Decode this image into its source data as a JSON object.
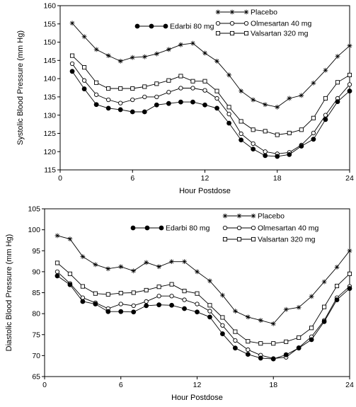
{
  "chart_data": [
    {
      "type": "line",
      "xlabel": "Hour Postdose",
      "ylabel": "Systolic Blood Pressure (mm Hg)",
      "xlim": [
        0,
        24
      ],
      "ylim": [
        115,
        160
      ],
      "xticks": [
        0,
        6,
        12,
        18,
        24
      ],
      "yticks": [
        115,
        120,
        125,
        130,
        135,
        140,
        145,
        150,
        155,
        160
      ],
      "grid": false,
      "x": [
        1,
        2,
        3,
        4,
        5,
        6,
        7,
        8,
        9,
        10,
        11,
        12,
        13,
        14,
        15,
        16,
        17,
        18,
        19,
        20,
        21,
        22,
        23,
        24
      ],
      "series": [
        {
          "name": "Placebo",
          "marker": "star",
          "values": [
            155.2,
            151.5,
            148.0,
            146.3,
            144.8,
            145.8,
            146.0,
            146.8,
            148.0,
            149.3,
            149.7,
            147.0,
            144.8,
            141.0,
            136.6,
            134.2,
            132.9,
            132.2,
            134.6,
            135.4,
            138.8,
            142.3,
            146.1,
            149.0
          ]
        },
        {
          "name": "Olmesartan 40 mg",
          "marker": "circle-open",
          "values": [
            144.1,
            139.5,
            135.6,
            134.2,
            133.3,
            134.2,
            135.0,
            135.0,
            136.3,
            137.4,
            137.4,
            136.8,
            134.6,
            130.3,
            124.9,
            122.2,
            120.0,
            119.4,
            119.8,
            121.8,
            125.1,
            130.0,
            134.6,
            138.4
          ]
        },
        {
          "name": "Valsartan 320 mg",
          "marker": "square-open",
          "values": [
            146.3,
            143.1,
            138.9,
            137.3,
            137.3,
            137.3,
            137.8,
            138.6,
            139.5,
            140.7,
            139.3,
            139.3,
            136.6,
            132.2,
            128.3,
            126.0,
            125.6,
            124.6,
            125.1,
            126.0,
            129.2,
            134.6,
            139.0,
            141.0
          ]
        },
        {
          "name": "Edarbi 80 mg",
          "marker": "circle-filled",
          "values": [
            142.0,
            137.2,
            132.9,
            131.9,
            131.5,
            130.9,
            130.9,
            132.8,
            133.2,
            133.6,
            133.6,
            132.8,
            131.9,
            127.8,
            123.2,
            120.7,
            118.9,
            118.7,
            119.2,
            121.5,
            123.4,
            128.8,
            133.7,
            136.6
          ]
        }
      ]
    },
    {
      "type": "line",
      "xlabel": "Hour Postdose",
      "ylabel": "Diastolic Blood Pressure (mm Hg)",
      "xlim": [
        0,
        24
      ],
      "ylim": [
        65,
        105
      ],
      "xticks": [
        0,
        6,
        12,
        18,
        24
      ],
      "yticks": [
        65,
        70,
        75,
        80,
        85,
        90,
        95,
        100,
        105
      ],
      "grid": false,
      "x": [
        1,
        2,
        3,
        4,
        5,
        6,
        7,
        8,
        9,
        10,
        11,
        12,
        13,
        14,
        15,
        16,
        17,
        18,
        19,
        20,
        21,
        22,
        23,
        24
      ],
      "series": [
        {
          "name": "Placebo",
          "marker": "star",
          "values": [
            98.6,
            97.8,
            93.6,
            91.7,
            90.7,
            91.2,
            90.2,
            92.2,
            91.2,
            92.4,
            92.4,
            90.0,
            87.8,
            84.4,
            80.6,
            79.2,
            78.4,
            77.6,
            81.0,
            81.5,
            84.1,
            87.6,
            91.1,
            95.0
          ]
        },
        {
          "name": "Olmesartan 40 mg",
          "marker": "circle-open",
          "values": [
            90.0,
            87.2,
            83.8,
            82.6,
            81.2,
            82.3,
            81.9,
            82.9,
            84.2,
            84.2,
            83.3,
            82.3,
            80.6,
            77.2,
            73.6,
            71.4,
            70.1,
            69.3,
            69.6,
            71.9,
            74.5,
            78.4,
            83.8,
            86.5
          ]
        },
        {
          "name": "Valsartan 320 mg",
          "marker": "square-open",
          "values": [
            92.1,
            89.5,
            86.5,
            84.8,
            84.6,
            84.9,
            85.0,
            85.6,
            86.4,
            87.0,
            85.4,
            84.8,
            82.0,
            79.1,
            75.7,
            73.4,
            72.9,
            72.9,
            73.3,
            74.3,
            76.6,
            81.6,
            86.6,
            89.5
          ]
        },
        {
          "name": "Edarbi 80 mg",
          "marker": "circle-filled",
          "values": [
            89.0,
            86.9,
            82.9,
            82.3,
            80.5,
            80.5,
            80.4,
            81.9,
            82.1,
            82.0,
            81.2,
            80.4,
            79.2,
            75.2,
            71.8,
            70.3,
            69.4,
            69.2,
            70.2,
            71.8,
            73.8,
            78.1,
            83.3,
            86.0
          ]
        }
      ]
    }
  ]
}
